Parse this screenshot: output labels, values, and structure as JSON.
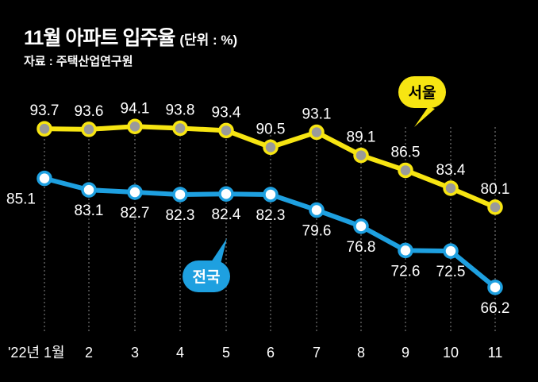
{
  "header": {
    "title": "11월 아파트 입주율",
    "unit": "(단위 : %)",
    "source": "자료 : 주택산업연구원"
  },
  "chart_data": {
    "type": "line",
    "title": "11월 아파트 입주율",
    "xlabel": "",
    "ylabel": "",
    "categories": [
      "'22년 1월",
      "2",
      "3",
      "4",
      "5",
      "6",
      "7",
      "8",
      "9",
      "10",
      "11"
    ],
    "ylim": [
      60,
      100
    ],
    "grid": "vertical-dashed",
    "series": [
      {
        "name": "서울",
        "color": "#f7e512",
        "marker_color": "#9a9a9a",
        "values": [
          93.7,
          93.6,
          94.1,
          93.8,
          93.4,
          90.5,
          93.1,
          89.1,
          86.5,
          83.4,
          80.1
        ],
        "labels": [
          "93.7",
          "93.6",
          "94.1",
          "93.8",
          "93.4",
          "90.5",
          "93.1",
          "89.1",
          "86.5",
          "83.4",
          "80.1"
        ]
      },
      {
        "name": "전국",
        "color": "#1ea0e0",
        "marker_color": "#ffffff",
        "values": [
          85.1,
          83.1,
          82.7,
          82.3,
          82.4,
          82.3,
          79.6,
          76.8,
          72.6,
          72.5,
          66.2
        ],
        "labels": [
          "85.1",
          "83.1",
          "82.7",
          "82.3",
          "82.4",
          "82.3",
          "79.6",
          "76.8",
          "72.6",
          "72.5",
          "66.2"
        ]
      }
    ]
  }
}
